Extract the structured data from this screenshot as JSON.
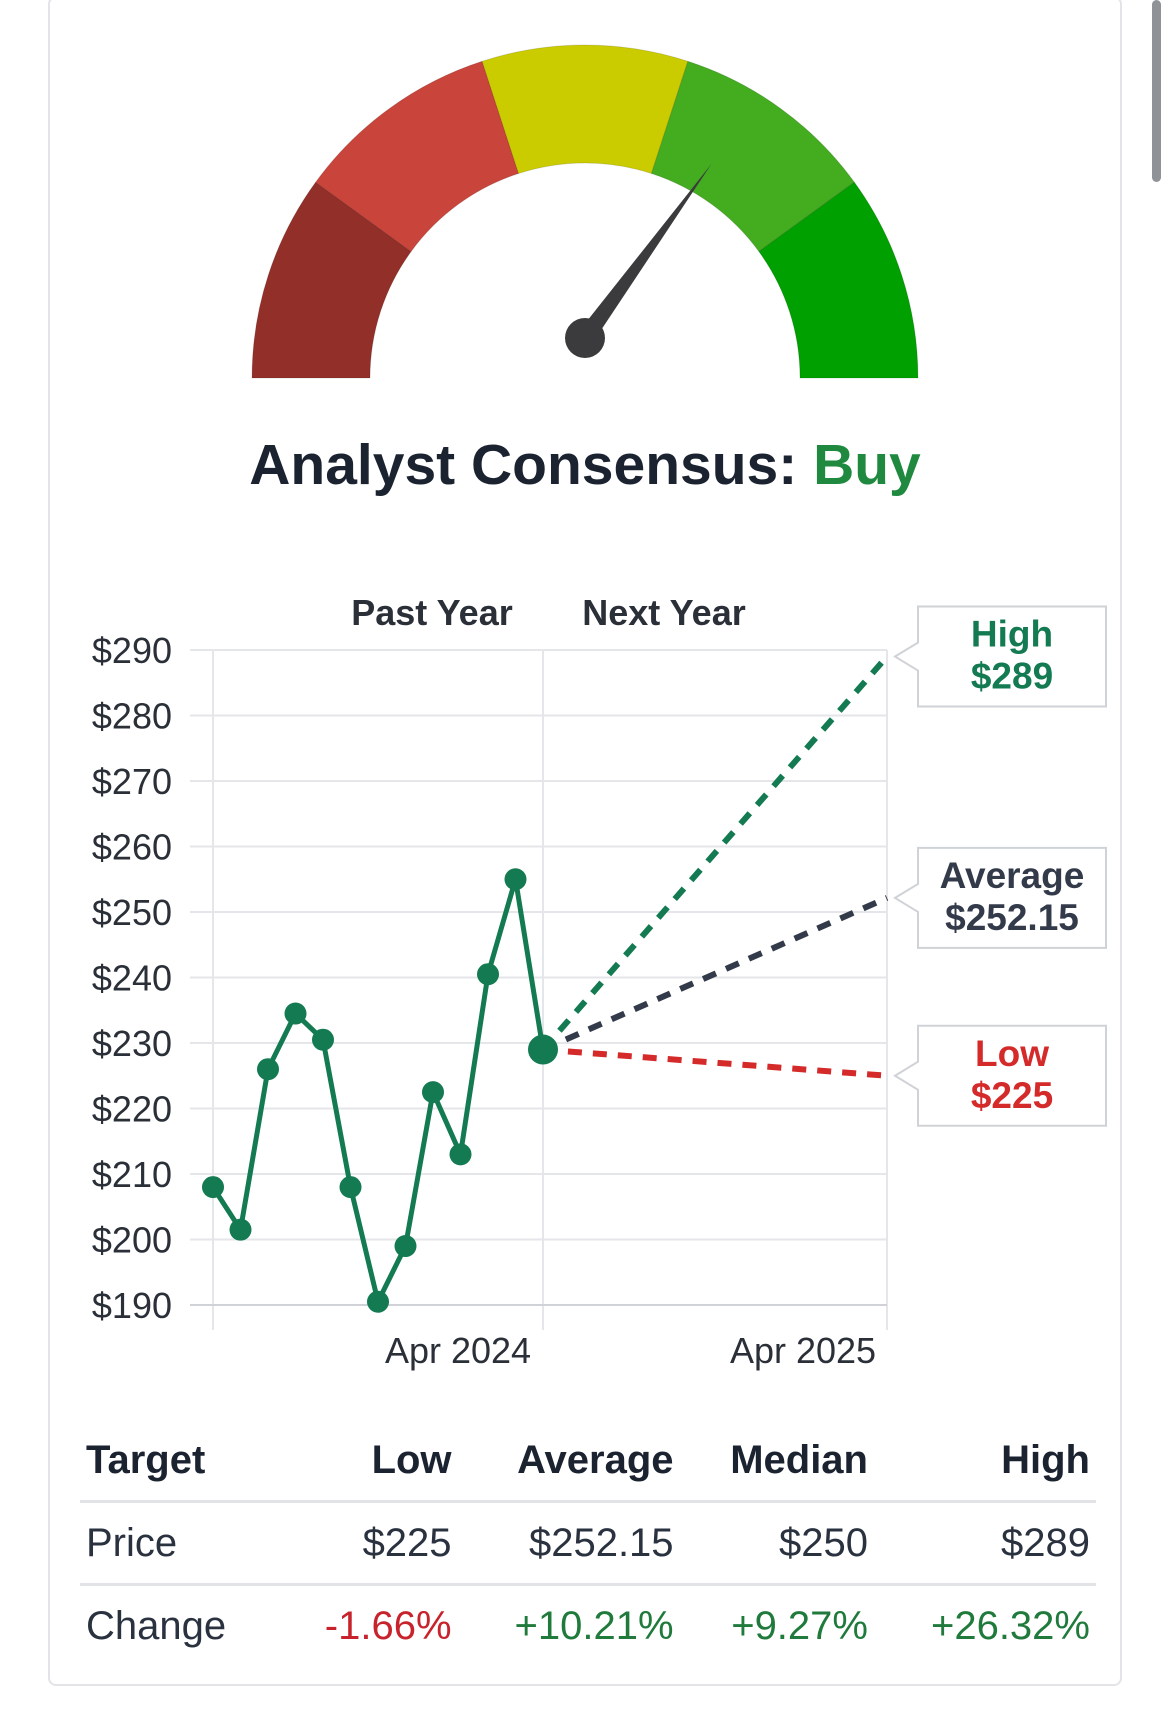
{
  "gauge": {
    "segments": [
      {
        "name": "strong-sell",
        "color": "#922f28"
      },
      {
        "name": "sell",
        "color": "#c9443a"
      },
      {
        "name": "hold",
        "color": "#cbcc00"
      },
      {
        "name": "buy",
        "color": "#43ac1f"
      },
      {
        "name": "strong-buy",
        "color": "#00a000"
      }
    ],
    "needle_position": 0.7
  },
  "consensus": {
    "label": "Analyst Consensus:",
    "value": "Buy",
    "value_color": "#1f8a3f"
  },
  "chart_data": {
    "type": "line",
    "period_labels": [
      "Past Year",
      "Next Year"
    ],
    "y_ticks": [
      "$290",
      "$280",
      "$270",
      "$260",
      "$250",
      "$240",
      "$230",
      "$220",
      "$210",
      "$200",
      "$190"
    ],
    "ylim": [
      190,
      290
    ],
    "x_ticks": [
      "Apr 2024",
      "Apr 2025"
    ],
    "series": [
      {
        "color": "#137a52",
        "values": [
          208,
          201.5,
          226,
          234.5,
          230.5,
          208,
          190.5,
          199,
          222.5,
          213,
          240.5,
          255,
          229
        ]
      }
    ],
    "projections": [
      {
        "name": "High",
        "value": "$289",
        "y": 289,
        "color": "#137a52"
      },
      {
        "name": "Average",
        "value": "$252.15",
        "y": 252.15,
        "color": "#333a4a"
      },
      {
        "name": "Low",
        "value": "$225",
        "y": 225,
        "color": "#d42a2a"
      }
    ],
    "grid": true
  },
  "table": {
    "headers": [
      "Target",
      "Low",
      "Average",
      "Median",
      "High"
    ],
    "price": {
      "label": "Price",
      "values": [
        "$225",
        "$252.15",
        "$250",
        "$289"
      ]
    },
    "change": {
      "label": "Change",
      "values": [
        "-1.66%",
        "+10.21%",
        "+9.27%",
        "+26.32%"
      ]
    }
  }
}
